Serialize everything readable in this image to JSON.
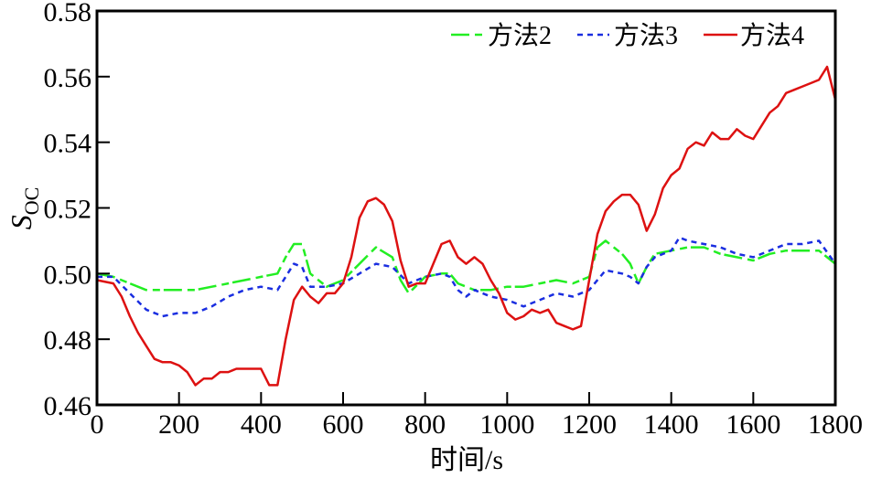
{
  "chart_data": {
    "type": "line",
    "title": "",
    "xlabel": "时间/s",
    "ylabel": "S",
    "ylabel_subscript": "OC",
    "xlim": [
      0,
      1800
    ],
    "ylim": [
      0.46,
      0.58
    ],
    "xticks": [
      0,
      200,
      400,
      600,
      800,
      1000,
      1200,
      1400,
      1600,
      1800
    ],
    "xtick_labels": [
      "0",
      "200",
      "400",
      "600",
      "800",
      "1000",
      "1200",
      "1400",
      "1600",
      "1800"
    ],
    "yticks": [
      0.46,
      0.48,
      0.5,
      0.52,
      0.54,
      0.56,
      0.58
    ],
    "ytick_labels": [
      "0.46",
      "0.48",
      "0.50",
      "0.52",
      "0.54",
      "0.56",
      "0.58"
    ],
    "grid": false,
    "legend_position": "top-right",
    "series": [
      {
        "name": "方法2",
        "color": "#22ee22",
        "dash": "long-dash",
        "x": [
          0,
          40,
          80,
          120,
          160,
          200,
          240,
          280,
          320,
          360,
          400,
          440,
          460,
          480,
          500,
          520,
          560,
          600,
          640,
          680,
          720,
          740,
          760,
          800,
          840,
          860,
          880,
          900,
          920,
          960,
          1000,
          1040,
          1080,
          1120,
          1160,
          1200,
          1220,
          1240,
          1260,
          1280,
          1300,
          1320,
          1340,
          1360,
          1400,
          1440,
          1480,
          1520,
          1560,
          1600,
          1640,
          1680,
          1720,
          1760,
          1800
        ],
        "y": [
          0.5,
          0.499,
          0.497,
          0.495,
          0.495,
          0.495,
          0.495,
          0.496,
          0.497,
          0.498,
          0.499,
          0.5,
          0.505,
          0.509,
          0.509,
          0.5,
          0.496,
          0.498,
          0.503,
          0.508,
          0.505,
          0.498,
          0.494,
          0.499,
          0.5,
          0.5,
          0.497,
          0.496,
          0.495,
          0.495,
          0.496,
          0.496,
          0.497,
          0.498,
          0.497,
          0.499,
          0.508,
          0.51,
          0.508,
          0.506,
          0.503,
          0.497,
          0.502,
          0.506,
          0.507,
          0.508,
          0.508,
          0.506,
          0.505,
          0.504,
          0.506,
          0.507,
          0.507,
          0.507,
          0.503
        ]
      },
      {
        "name": "方法3",
        "color": "#1a2ee0",
        "dash": "short-dash",
        "x": [
          0,
          40,
          80,
          120,
          160,
          200,
          240,
          280,
          320,
          360,
          400,
          440,
          460,
          480,
          500,
          520,
          560,
          600,
          640,
          680,
          720,
          760,
          800,
          840,
          860,
          880,
          900,
          920,
          960,
          1000,
          1040,
          1080,
          1120,
          1160,
          1200,
          1240,
          1280,
          1300,
          1320,
          1340,
          1360,
          1400,
          1420,
          1440,
          1480,
          1520,
          1560,
          1600,
          1640,
          1680,
          1720,
          1760,
          1800
        ],
        "y": [
          0.499,
          0.499,
          0.494,
          0.489,
          0.487,
          0.488,
          0.488,
          0.49,
          0.493,
          0.495,
          0.496,
          0.495,
          0.499,
          0.503,
          0.502,
          0.496,
          0.496,
          0.497,
          0.5,
          0.503,
          0.502,
          0.497,
          0.499,
          0.5,
          0.499,
          0.495,
          0.493,
          0.495,
          0.493,
          0.492,
          0.49,
          0.492,
          0.494,
          0.493,
          0.495,
          0.501,
          0.5,
          0.499,
          0.497,
          0.502,
          0.505,
          0.507,
          0.511,
          0.51,
          0.509,
          0.508,
          0.506,
          0.505,
          0.507,
          0.509,
          0.509,
          0.51,
          0.503
        ]
      },
      {
        "name": "方法4",
        "color": "#dd1111",
        "dash": "solid",
        "x": [
          0,
          40,
          60,
          80,
          100,
          120,
          140,
          160,
          180,
          200,
          220,
          240,
          260,
          280,
          300,
          320,
          340,
          360,
          380,
          400,
          420,
          440,
          460,
          480,
          500,
          520,
          540,
          560,
          580,
          600,
          620,
          640,
          660,
          680,
          700,
          720,
          740,
          760,
          780,
          800,
          820,
          840,
          860,
          880,
          900,
          920,
          940,
          960,
          980,
          1000,
          1020,
          1040,
          1060,
          1080,
          1100,
          1120,
          1140,
          1160,
          1180,
          1200,
          1220,
          1240,
          1260,
          1280,
          1300,
          1320,
          1340,
          1360,
          1380,
          1400,
          1420,
          1440,
          1460,
          1480,
          1500,
          1520,
          1540,
          1560,
          1580,
          1600,
          1620,
          1640,
          1660,
          1680,
          1700,
          1720,
          1740,
          1760,
          1780,
          1800
        ],
        "y": [
          0.498,
          0.497,
          0.493,
          0.487,
          0.482,
          0.478,
          0.474,
          0.473,
          0.473,
          0.472,
          0.47,
          0.466,
          0.468,
          0.468,
          0.47,
          0.47,
          0.471,
          0.471,
          0.471,
          0.471,
          0.466,
          0.466,
          0.48,
          0.492,
          0.496,
          0.493,
          0.491,
          0.494,
          0.494,
          0.497,
          0.505,
          0.517,
          0.522,
          0.523,
          0.521,
          0.516,
          0.504,
          0.496,
          0.497,
          0.497,
          0.503,
          0.509,
          0.51,
          0.505,
          0.503,
          0.505,
          0.503,
          0.498,
          0.494,
          0.488,
          0.486,
          0.487,
          0.489,
          0.488,
          0.489,
          0.485,
          0.484,
          0.483,
          0.484,
          0.498,
          0.512,
          0.519,
          0.522,
          0.524,
          0.524,
          0.521,
          0.513,
          0.518,
          0.526,
          0.53,
          0.532,
          0.538,
          0.54,
          0.539,
          0.543,
          0.541,
          0.541,
          0.544,
          0.542,
          0.541,
          0.545,
          0.549,
          0.551,
          0.555,
          0.556,
          0.557,
          0.558,
          0.559,
          0.563,
          0.553
        ]
      }
    ]
  }
}
